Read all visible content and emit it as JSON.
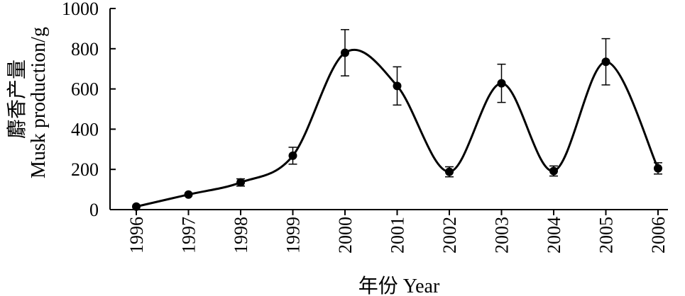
{
  "chart_data": {
    "type": "line",
    "title": "",
    "xlabel": "年份 Year",
    "ylabel_cn": "麝香产量",
    "ylabel_en": "Musk production/g",
    "categories": [
      "1996",
      "1997",
      "1998",
      "1999",
      "2000",
      "2001",
      "2002",
      "2003",
      "2004",
      "2005",
      "2006"
    ],
    "series": [
      {
        "values": [
          15,
          75,
          135,
          268,
          780,
          615,
          188,
          628,
          192,
          735,
          205
        ],
        "error": [
          null,
          null,
          18,
          42,
          115,
          95,
          25,
          95,
          25,
          115,
          28
        ]
      }
    ],
    "ylim": [
      0,
      1000
    ],
    "yticks": [
      0,
      200,
      400,
      600,
      800,
      1000
    ],
    "grid": false,
    "legend": "none",
    "colors": {
      "line": "#000000",
      "marker": "#000000"
    }
  }
}
